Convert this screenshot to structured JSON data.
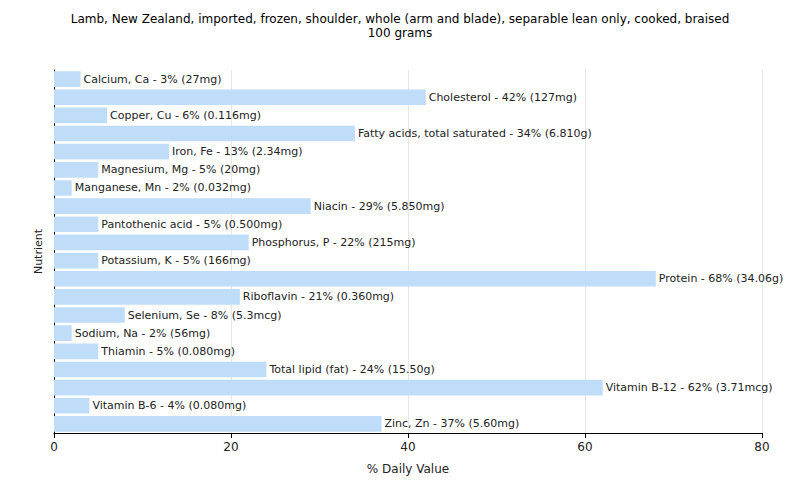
{
  "chart_data": {
    "type": "bar",
    "title": "Lamb, New Zealand, imported, frozen, shoulder, whole (arm and blade), separable lean only, cooked, braised",
    "subtitle": "100 grams",
    "x_label": "% Daily Value",
    "y_label": "Nutrient",
    "orientation": "horizontal",
    "categories": [
      "Calcium, Ca",
      "Cholesterol",
      "Copper, Cu",
      "Fatty acids, total saturated",
      "Iron, Fe",
      "Magnesium, Mg",
      "Manganese, Mn",
      "Niacin",
      "Pantothenic acid",
      "Phosphorus, P",
      "Potassium, K",
      "Protein",
      "Riboflavin",
      "Selenium, Se",
      "Sodium, Na",
      "Thiamin",
      "Total lipid (fat)",
      "Vitamin B-12",
      "Vitamin B-6",
      "Zinc, Zn"
    ],
    "values": [
      3,
      42,
      6,
      34,
      13,
      5,
      2,
      29,
      5,
      22,
      5,
      68,
      21,
      8,
      2,
      5,
      24,
      62,
      4,
      37
    ],
    "value_labels": [
      "Calcium, Ca - 3% (27mg)",
      "Cholesterol - 42% (127mg)",
      "Copper, Cu - 6% (0.116mg)",
      "Fatty acids, total saturated - 34% (6.810g)",
      "Iron, Fe - 13% (2.34mg)",
      "Magnesium, Mg - 5% (20mg)",
      "Manganese, Mn - 2% (0.032mg)",
      "Niacin - 29% (5.850mg)",
      "Pantothenic acid - 5% (0.500mg)",
      "Phosphorus, P - 22% (215mg)",
      "Potassium, K - 5% (166mg)",
      "Protein - 68% (34.06g)",
      "Riboflavin - 21% (0.360mg)",
      "Selenium, Se - 8% (5.3mcg)",
      "Sodium, Na - 2% (56mg)",
      "Thiamin - 5% (0.080mg)",
      "Total lipid (fat) - 24% (15.50g)",
      "Vitamin B-12 - 62% (3.71mcg)",
      "Vitamin B-6 - 4% (0.080mg)",
      "Zinc, Zn - 37% (5.60mg)"
    ],
    "color": "#bfdcf8",
    "xlim": [
      0,
      80
    ],
    "xticks": [
      0,
      20,
      40,
      60,
      80
    ],
    "grid": true,
    "data_labels": true,
    "tick_labels": "x"
  }
}
